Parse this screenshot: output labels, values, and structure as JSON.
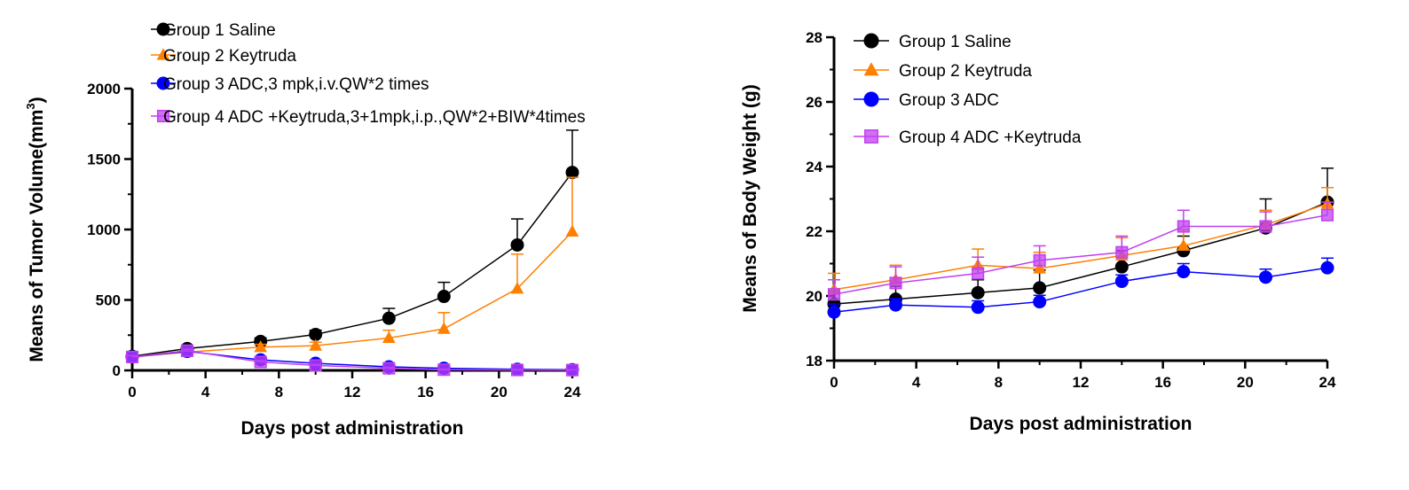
{
  "chart_data": [
    {
      "type": "line",
      "xlabel": "Days post administration",
      "ylabel": "Means of Tumor Volume(mm",
      "ylabel_sup": "3",
      "ylabel_end": ")",
      "xlim": [
        0,
        24
      ],
      "ylim": [
        0,
        2000
      ],
      "xticks": [
        "0",
        "4",
        "8",
        "12",
        "16",
        "20",
        "24"
      ],
      "yticks": [
        "0",
        "500",
        "1000",
        "1500",
        "2000"
      ],
      "grid": false,
      "legend_position": "top",
      "series": [
        {
          "name": "Group 1 Saline",
          "color": "#000000",
          "marker": "circle",
          "x": [
            0,
            3,
            7,
            10,
            14,
            17,
            21,
            24
          ],
          "y": [
            100,
            155,
            205,
            255,
            370,
            525,
            890,
            1405
          ],
          "err": [
            20,
            20,
            25,
            30,
            70,
            100,
            185,
            300
          ]
        },
        {
          "name": "Group 2 Keytruda",
          "color": "#ff8000",
          "marker": "triangle",
          "x": [
            0,
            3,
            7,
            10,
            14,
            17,
            21,
            24
          ],
          "y": [
            95,
            130,
            165,
            175,
            230,
            295,
            580,
            985
          ],
          "err": [
            15,
            15,
            20,
            25,
            55,
            115,
            245,
            385
          ]
        },
        {
          "name": "Group 3 ADC,3 mpk,i.v.QW*2 times",
          "color": "#0000ff",
          "marker": "circle",
          "x": [
            0,
            3,
            7,
            10,
            14,
            17,
            21,
            24
          ],
          "y": [
            95,
            135,
            75,
            50,
            25,
            15,
            8,
            5
          ],
          "err": [
            10,
            10,
            10,
            8,
            6,
            5,
            3,
            3
          ]
        },
        {
          "name": "Group 4 ADC +Keytruda,3+1mpk,i.p.,QW*2+BIW*4times",
          "color": "#c040f0",
          "marker": "square",
          "x": [
            0,
            3,
            7,
            10,
            14,
            17,
            21,
            24
          ],
          "y": [
            95,
            140,
            60,
            35,
            15,
            5,
            3,
            2
          ],
          "err": [
            10,
            10,
            10,
            8,
            6,
            4,
            3,
            2
          ]
        }
      ]
    },
    {
      "type": "line",
      "xlabel": "Days post administration",
      "ylabel": "Means of Body Weight (g)",
      "xlim": [
        0,
        24
      ],
      "ylim": [
        18,
        28
      ],
      "xticks": [
        "0",
        "4",
        "8",
        "12",
        "16",
        "20",
        "24"
      ],
      "yticks": [
        "18",
        "20",
        "22",
        "24",
        "26",
        "28"
      ],
      "grid": false,
      "legend_position": "top-left",
      "series": [
        {
          "name": "Group 1 Saline",
          "color": "#000000",
          "marker": "circle",
          "x": [
            0,
            3,
            7,
            10,
            14,
            17,
            21,
            24
          ],
          "y": [
            19.75,
            19.9,
            20.1,
            20.25,
            20.9,
            21.4,
            22.1,
            22.9
          ],
          "err": [
            0.4,
            0.4,
            0.4,
            0.55,
            0.5,
            0.45,
            0.9,
            1.05
          ]
        },
        {
          "name": "Group 2 Keytruda",
          "color": "#ff8000",
          "marker": "triangle",
          "x": [
            0,
            3,
            7,
            10,
            14,
            17,
            21,
            24
          ],
          "y": [
            20.2,
            20.5,
            20.95,
            20.85,
            21.25,
            21.55,
            22.2,
            22.85
          ],
          "err": [
            0.5,
            0.45,
            0.5,
            0.5,
            0.55,
            0.5,
            0.45,
            0.5
          ]
        },
        {
          "name": "Group 3 ADC",
          "color": "#0000ff",
          "marker": "circle",
          "x": [
            0,
            3,
            7,
            10,
            14,
            17,
            21,
            24
          ],
          "y": [
            19.5,
            19.72,
            19.65,
            19.82,
            20.45,
            20.75,
            20.58,
            20.87
          ],
          "err": [
            0.25,
            0.2,
            0.2,
            0.2,
            0.2,
            0.25,
            0.25,
            0.3
          ]
        },
        {
          "name": "Group 4 ADC +Keytruda",
          "color": "#c040f0",
          "marker": "square",
          "x": [
            0,
            3,
            7,
            10,
            14,
            17,
            21,
            24
          ],
          "y": [
            20.05,
            20.4,
            20.7,
            21.1,
            21.35,
            22.15,
            22.15,
            22.5
          ],
          "err": [
            0.45,
            0.5,
            0.5,
            0.45,
            0.5,
            0.5,
            0.45,
            0.4
          ]
        }
      ]
    }
  ]
}
